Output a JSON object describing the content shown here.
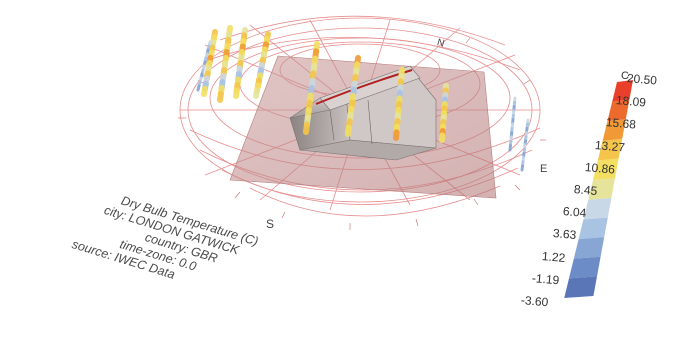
{
  "info": {
    "lines": [
      "Dry Bulb Temperature (C)",
      "city: LONDON GATWICK",
      "country: GBR",
      "time-zone: 0.0",
      "source: IWEC Data"
    ]
  },
  "legend": {
    "unit": "C",
    "values": [
      "20.50",
      "18.09",
      "15.68",
      "13.27",
      "10.86",
      "8.45",
      "6.04",
      "3.63",
      "1.22",
      "-1.19",
      "-3.60"
    ],
    "colors": [
      "#e8402a",
      "#ec6a2c",
      "#f19a35",
      "#f4c54a",
      "#f3df62",
      "#e6e49b",
      "#c9d8e6",
      "#a9c3e3",
      "#87a6d3",
      "#6b8cc6",
      "#5a76b7"
    ]
  },
  "compass": {
    "north": "N",
    "east": "E",
    "south": "S"
  }
}
